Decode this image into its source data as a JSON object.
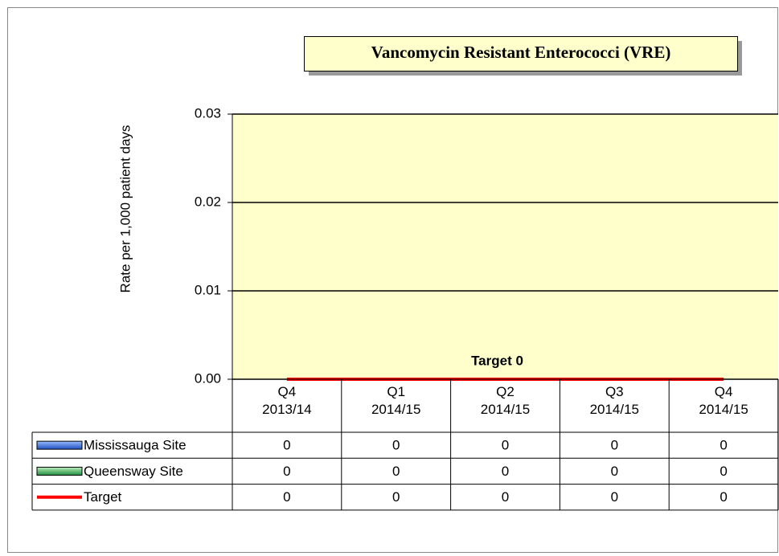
{
  "chart_data": {
    "type": "bar",
    "title": "Vancomycin Resistant Enterococci (VRE)",
    "y_label": "Rate per 1,000 patient days",
    "categories": [
      "Q4\n2013/14",
      "Q1\n2014/15",
      "Q2\n2014/15",
      "Q3\n2014/15",
      "Q4\n2014/15"
    ],
    "series": [
      {
        "name": "Mississauga Site",
        "type": "bar",
        "color": "#3366cc",
        "values": [
          0,
          0,
          0,
          0,
          0
        ]
      },
      {
        "name": "Queensway Site",
        "type": "bar",
        "color": "#339933",
        "values": [
          0,
          0,
          0,
          0,
          0
        ]
      },
      {
        "name": "Target",
        "type": "line",
        "color": "#ff0000",
        "values": [
          0,
          0,
          0,
          0,
          0
        ]
      }
    ],
    "annotation": "Target  0",
    "ylim": [
      0,
      0.03
    ],
    "yticks": [
      {
        "value": 0,
        "label": "0.00"
      },
      {
        "value": 0.01,
        "label": "0.01"
      },
      {
        "value": 0.02,
        "label": "0.02"
      },
      {
        "value": 0.03,
        "label": "0.03"
      }
    ],
    "grid": true,
    "plot_background": "#ffffcc"
  }
}
